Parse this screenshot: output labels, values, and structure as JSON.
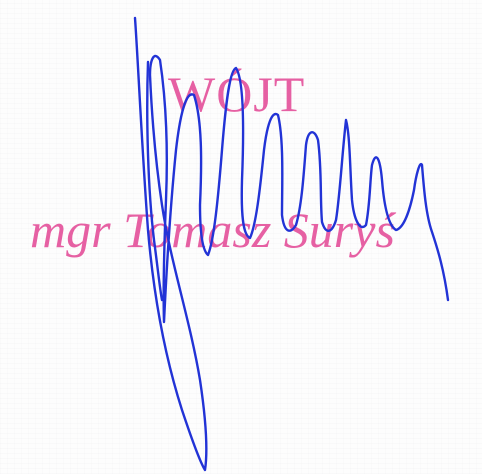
{
  "stamp": {
    "title": "WÓJT",
    "name": "mgr Tomasz Suryś"
  },
  "colors": {
    "stamp_ink": "#e4509a",
    "signature_ink": "#2233d6"
  }
}
